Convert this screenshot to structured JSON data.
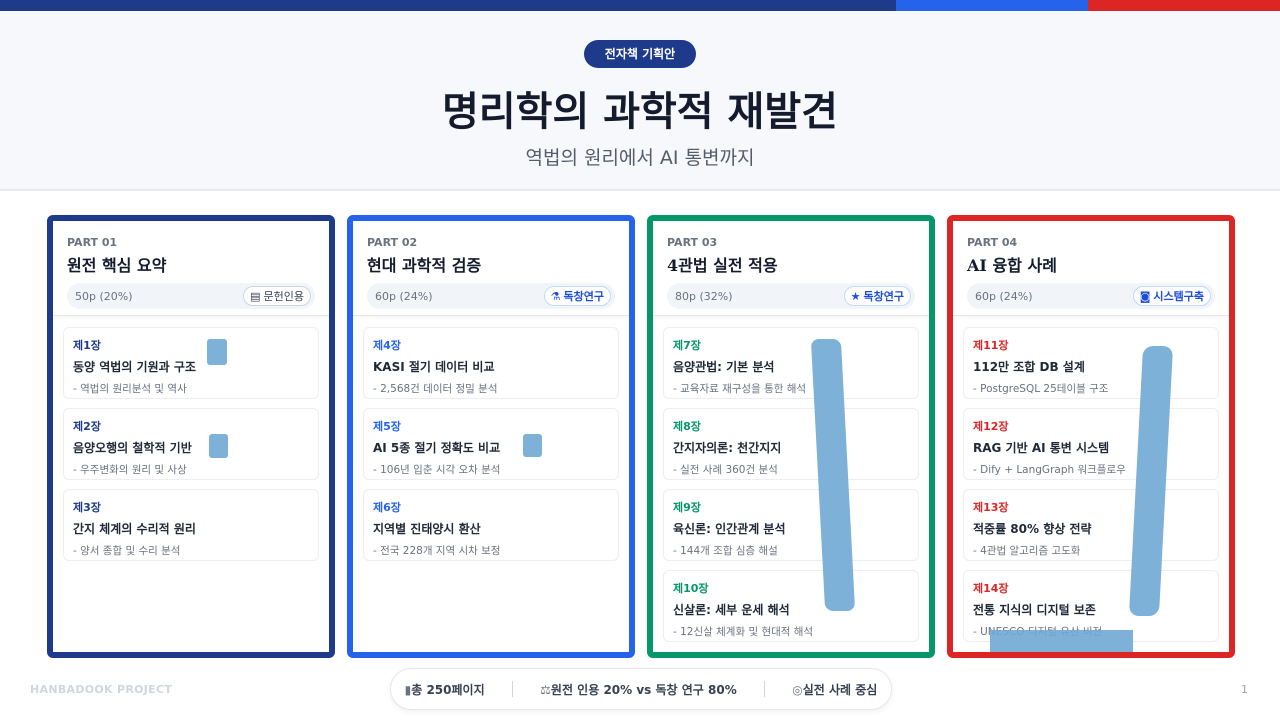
{
  "colors": {
    "navy": "#1e3a8a",
    "blue": "#2563eb",
    "green": "#059669",
    "red": "#dc2626"
  },
  "hero": {
    "badge": "전자책 기획안",
    "title": "명리학의 과학적 재발견",
    "subtitle": "역법의 원리에서 AI 통변까지"
  },
  "parts": [
    {
      "part": "PART 01",
      "title": "원전 핵심 요약",
      "pages": "50p (20%)",
      "tag": "문헌인용",
      "tag_icon": "book-icon",
      "color": "#1e3a8a",
      "chapters": [
        {
          "no": "제1장",
          "title": "동양 역법의 기원과 구조",
          "desc": "- 역법의 원리분석 및 역사"
        },
        {
          "no": "제2장",
          "title": "음양오행의 철학적 기반",
          "desc": "- 우주변화의 원리 및 사상"
        },
        {
          "no": "제3장",
          "title": "간지 체계의 수리적 원리",
          "desc": "- 양서 종합 및 수리 분석"
        }
      ]
    },
    {
      "part": "PART 02",
      "title": "현대 과학적 검증",
      "pages": "60p (24%)",
      "tag": "독창연구",
      "tag_icon": "flask-icon",
      "color": "#2563eb",
      "chapters": [
        {
          "no": "제4장",
          "title": "KASI 절기 데이터 비교",
          "desc": "- 2,568건 데이터 정밀 분석"
        },
        {
          "no": "제5장",
          "title": "AI 5종 절기 정확도 비교",
          "desc": "- 106년 입춘 시각 오차 분석"
        },
        {
          "no": "제6장",
          "title": "지역별 진태양시 환산",
          "desc": "- 전국 228개 지역 시차 보정"
        }
      ]
    },
    {
      "part": "PART 03",
      "title": "4관법 실전 적용",
      "pages": "80p (32%)",
      "tag": "독창연구",
      "tag_icon": "star-icon",
      "color": "#059669",
      "chapters": [
        {
          "no": "제7장",
          "title": "음양관법: 기본 분석",
          "desc": "- 교육자료 재구성을 통한 해석"
        },
        {
          "no": "제8장",
          "title": "간지자의론: 천간지지",
          "desc": "- 실전 사례 360건 분석"
        },
        {
          "no": "제9장",
          "title": "육신론: 인간관계 분석",
          "desc": "- 144개 조합 심층 해설"
        },
        {
          "no": "제10장",
          "title": "신살론: 세부 운세 해석",
          "desc": "- 12신살 체계화 및 현대적 해석"
        }
      ]
    },
    {
      "part": "PART 04",
      "title": "AI 융합 사례",
      "pages": "60p (24%)",
      "tag": "시스템구축",
      "tag_icon": "robot-icon",
      "color": "#dc2626",
      "chapters": [
        {
          "no": "제11장",
          "title": "112만 조합 DB 설계",
          "desc": "- PostgreSQL 25테이블 구조"
        },
        {
          "no": "제12장",
          "title": "RAG 기반 AI 통변 시스템",
          "desc": "- Dify + LangGraph 워크플로우"
        },
        {
          "no": "제13장",
          "title": "적중률 80% 향상 전략",
          "desc": "- 4관법 알고리즘 고도화"
        },
        {
          "no": "제14장",
          "title": "전통 지식의 디지털 보존",
          "desc": "- UNESCO 디지털 유산 비전"
        }
      ]
    }
  ],
  "footer": {
    "project": "HANBADOOK PROJECT",
    "page": "1",
    "stats": [
      {
        "icon": "document-icon",
        "glyph": "▮",
        "text": "총 250페이지"
      },
      {
        "icon": "scale-icon",
        "glyph": "⚖",
        "text": "원전 인용 20% vs 독창 연구 80%"
      },
      {
        "icon": "target-icon",
        "glyph": "◎",
        "text": "실전 사례 중심"
      }
    ]
  }
}
